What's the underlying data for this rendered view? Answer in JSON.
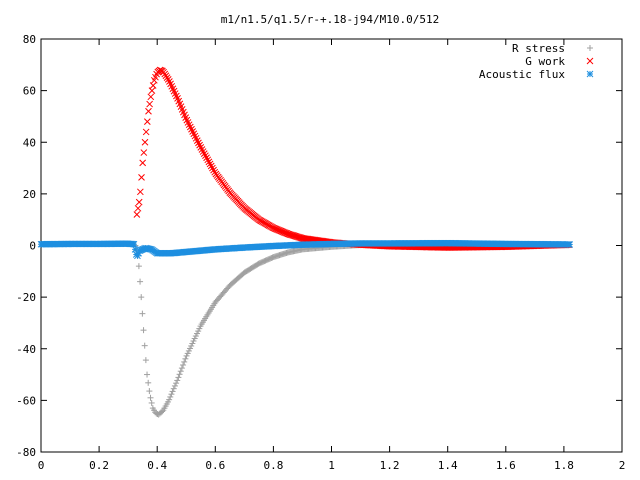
{
  "chart_data": {
    "type": "scatter",
    "title": "m1/n1.5/q1.5/r-+.18-j94/M10.0/512",
    "xlabel": "",
    "ylabel": "",
    "xlim": [
      0,
      2
    ],
    "ylim": [
      -80,
      80
    ],
    "x_ticks": [
      "0",
      "0.2",
      "0.4",
      "0.6",
      "0.8",
      "1",
      "1.2",
      "1.4",
      "1.6",
      "1.8",
      "2"
    ],
    "y_ticks": [
      "80",
      "60",
      "40",
      "20",
      "0",
      "-20",
      "-40",
      "-60",
      "-80"
    ],
    "grid": false,
    "legend_position": "top-right",
    "series": [
      {
        "name": "R stress",
        "marker": "plus",
        "color": "#a0a0a0",
        "keypoints": [
          [
            0.325,
            0
          ],
          [
            0.335,
            -5
          ],
          [
            0.345,
            -20
          ],
          [
            0.355,
            -36
          ],
          [
            0.365,
            -50
          ],
          [
            0.375,
            -58
          ],
          [
            0.385,
            -63
          ],
          [
            0.395,
            -65
          ],
          [
            0.405,
            -65.5
          ],
          [
            0.42,
            -64
          ],
          [
            0.44,
            -60
          ],
          [
            0.47,
            -52
          ],
          [
            0.5,
            -43
          ],
          [
            0.55,
            -31
          ],
          [
            0.6,
            -22
          ],
          [
            0.65,
            -15.5
          ],
          [
            0.7,
            -10.5
          ],
          [
            0.75,
            -7
          ],
          [
            0.8,
            -4.5
          ],
          [
            0.85,
            -2.7
          ],
          [
            0.9,
            -1.5
          ],
          [
            1.0,
            -0.5
          ],
          [
            1.1,
            0.2
          ],
          [
            1.2,
            0.3
          ],
          [
            1.4,
            0.4
          ],
          [
            1.6,
            0.2
          ],
          [
            1.82,
            0.1
          ]
        ],
        "x_start": 0.325,
        "x_end": 1.82
      },
      {
        "name": "G work",
        "marker": "cross",
        "color": "#ff0000",
        "keypoints": [
          [
            0.33,
            12
          ],
          [
            0.34,
            18
          ],
          [
            0.35,
            32
          ],
          [
            0.36,
            42
          ],
          [
            0.37,
            52
          ],
          [
            0.38,
            59
          ],
          [
            0.39,
            64
          ],
          [
            0.4,
            67
          ],
          [
            0.41,
            68
          ],
          [
            0.42,
            67.5
          ],
          [
            0.44,
            64
          ],
          [
            0.47,
            57
          ],
          [
            0.5,
            49
          ],
          [
            0.55,
            38
          ],
          [
            0.6,
            28
          ],
          [
            0.65,
            20.5
          ],
          [
            0.7,
            14.5
          ],
          [
            0.75,
            10
          ],
          [
            0.8,
            6.8
          ],
          [
            0.85,
            4.5
          ],
          [
            0.9,
            2.8
          ],
          [
            1.0,
            1.2
          ],
          [
            1.1,
            0.3
          ],
          [
            1.2,
            -0.3
          ],
          [
            1.4,
            -0.8
          ],
          [
            1.6,
            -0.5
          ],
          [
            1.82,
            0.3
          ]
        ],
        "x_start": 0.33,
        "x_end": 1.82
      },
      {
        "name": "Acoustic flux",
        "marker": "star",
        "color": "#1e8fe0",
        "keypoints": [
          [
            0,
            0.5
          ],
          [
            0.1,
            0.6
          ],
          [
            0.2,
            0.6
          ],
          [
            0.3,
            0.7
          ],
          [
            0.32,
            0.5
          ],
          [
            0.33,
            -4.5
          ],
          [
            0.34,
            -2
          ],
          [
            0.36,
            -1
          ],
          [
            0.38,
            -1.5
          ],
          [
            0.4,
            -3
          ],
          [
            0.45,
            -3
          ],
          [
            0.5,
            -2.5
          ],
          [
            0.6,
            -1.5
          ],
          [
            0.7,
            -0.8
          ],
          [
            0.8,
            -0.2
          ],
          [
            0.9,
            0.3
          ],
          [
            1.0,
            0.6
          ],
          [
            1.1,
            0.8
          ],
          [
            1.2,
            0.8
          ],
          [
            1.4,
            0.9
          ],
          [
            1.6,
            0.6
          ],
          [
            1.82,
            0.4
          ]
        ],
        "x_start": 0,
        "x_end": 1.82
      }
    ]
  }
}
